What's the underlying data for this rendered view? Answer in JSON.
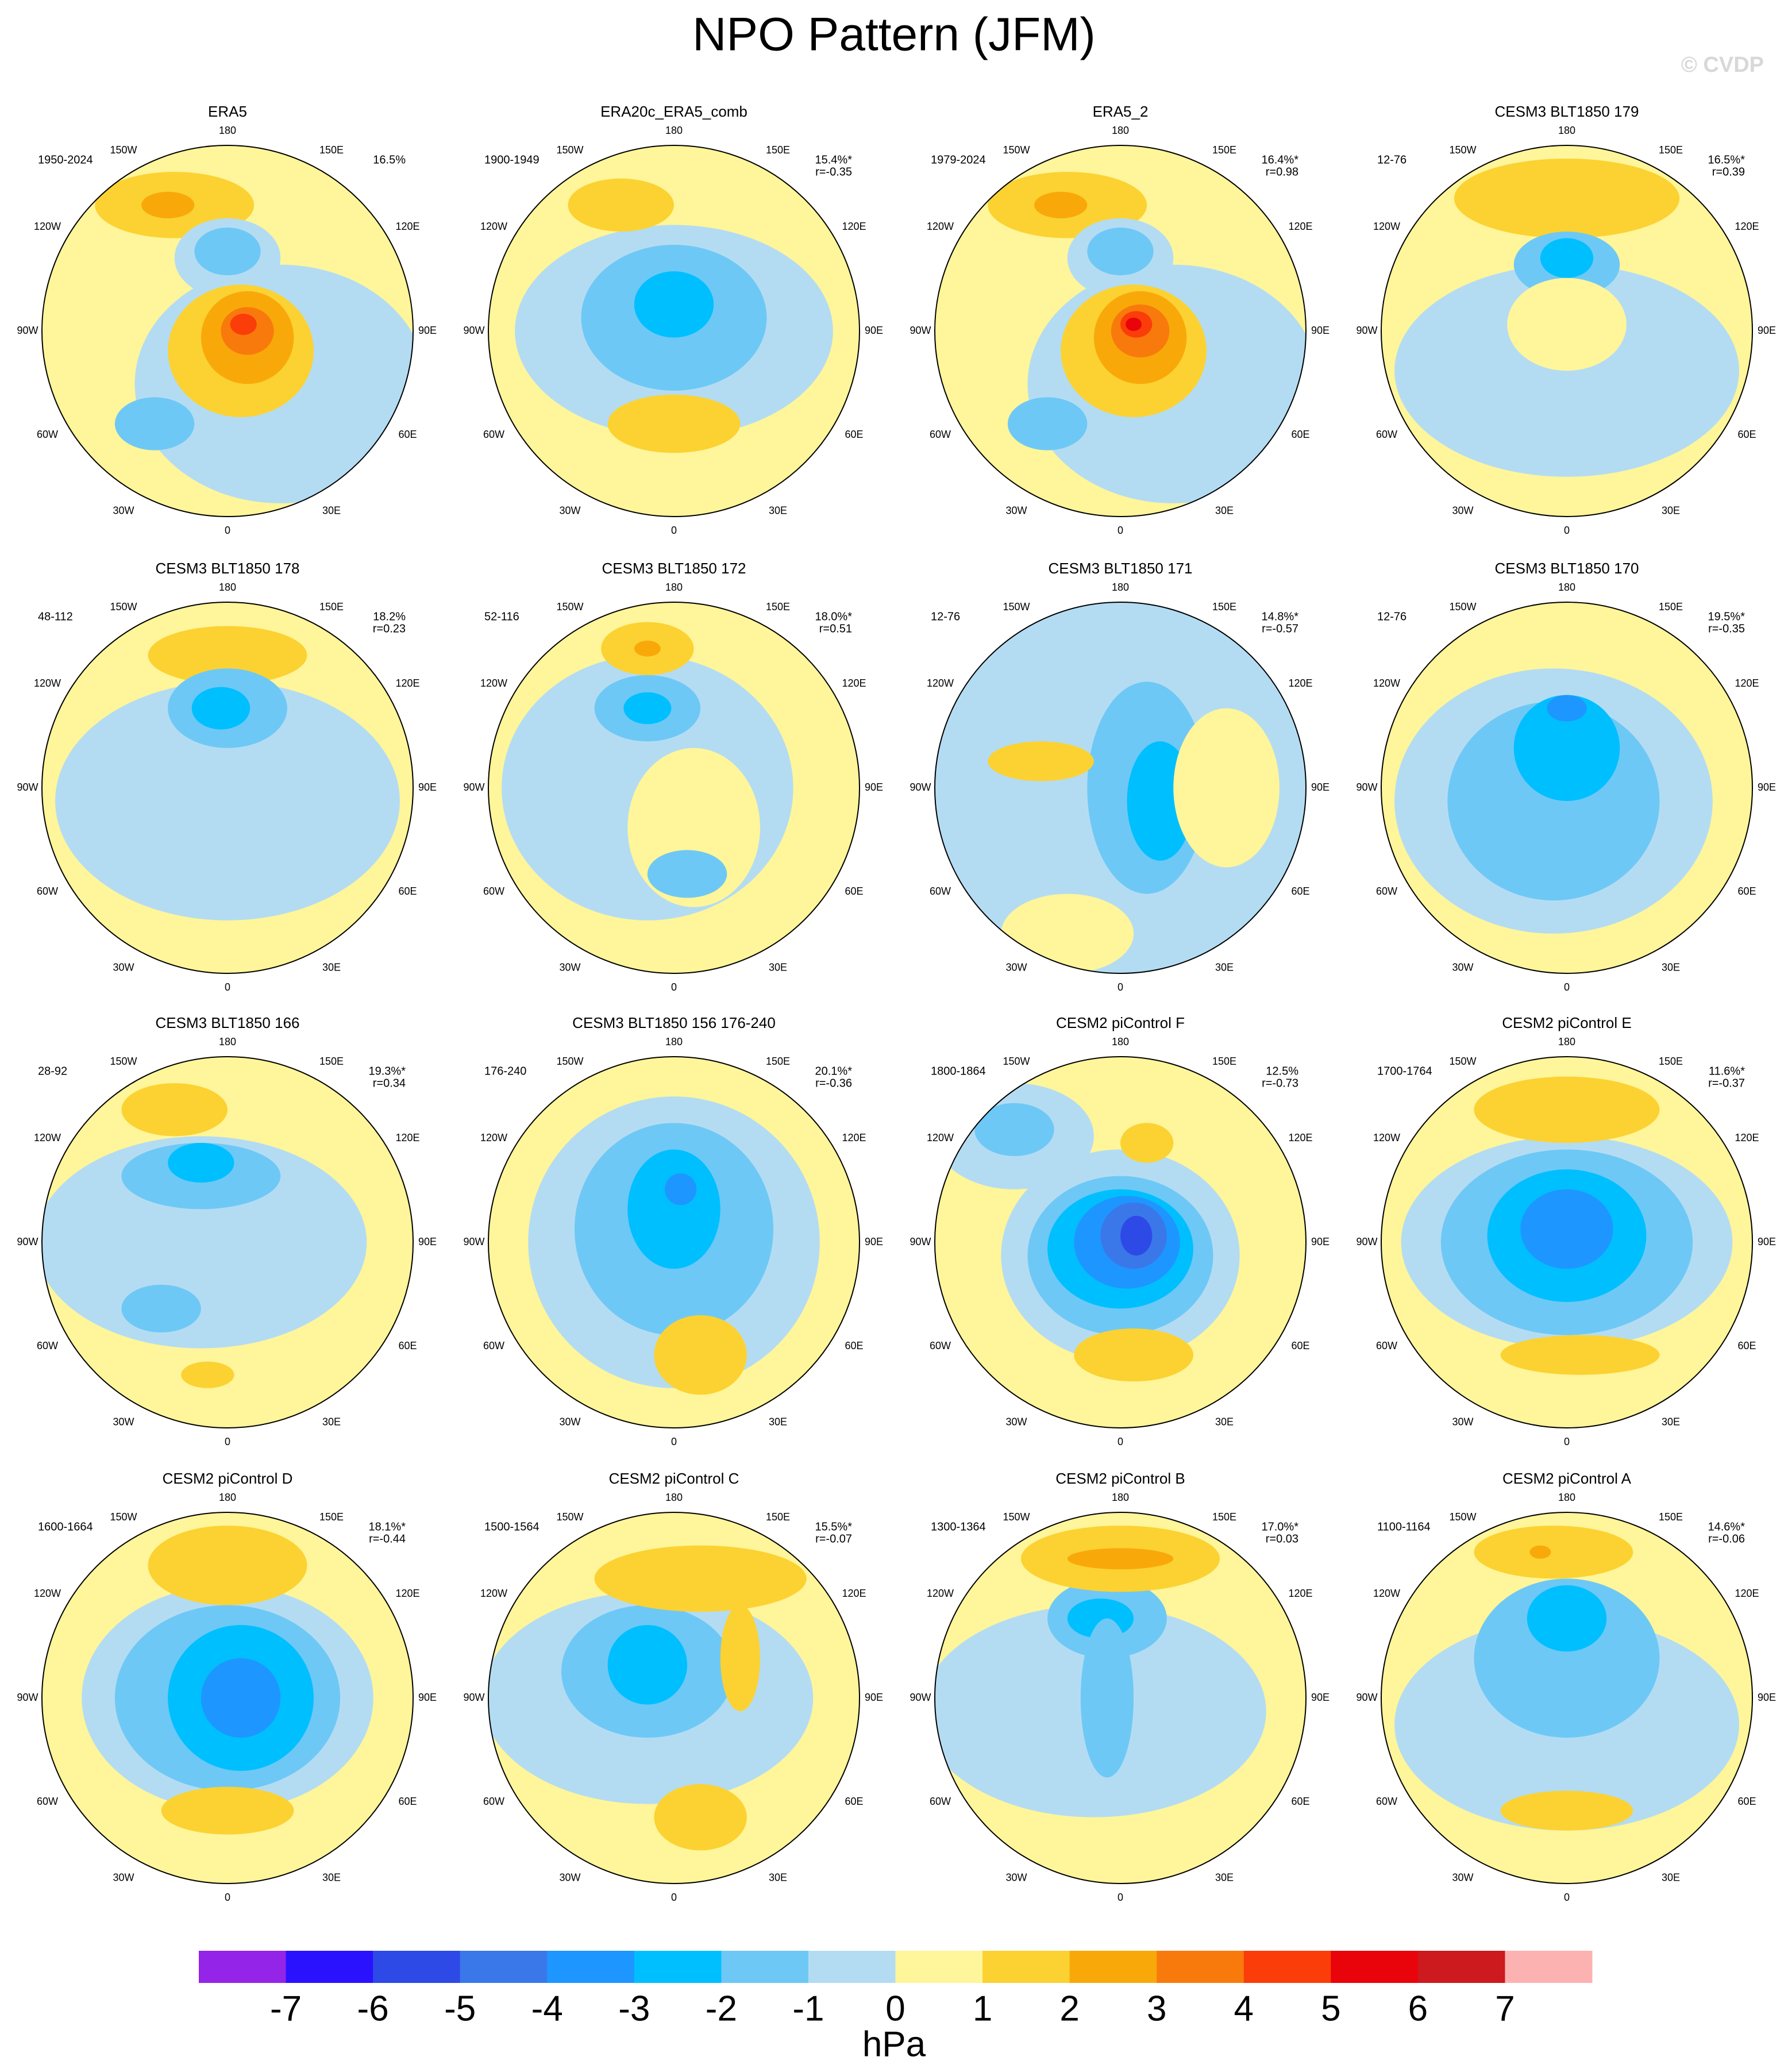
{
  "title": "NPO Pattern (JFM)",
  "watermark": "© CVDP",
  "lon_labels": [
    "180",
    "150E",
    "120E",
    "90E",
    "60E",
    "30E",
    "0",
    "30W",
    "60W",
    "90W",
    "120W",
    "150W"
  ],
  "panels": [
    {
      "title": "ERA5",
      "period": "1950-2024",
      "pct": "16.5%"
    },
    {
      "title": "ERA20c_ERA5_comb",
      "period": "1900-1949",
      "pct": "15.4%*",
      "r": "r=-0.35"
    },
    {
      "title": "ERA5_2",
      "period": "1979-2024",
      "pct": "16.4%*",
      "r": "r=0.98"
    },
    {
      "title": "CESM3 BLT1850 179",
      "period": "12-76",
      "pct": "16.5%*",
      "r": "r=0.39"
    },
    {
      "title": "CESM3 BLT1850 178",
      "period": "48-112",
      "pct": "18.2%",
      "r": "r=0.23"
    },
    {
      "title": "CESM3 BLT1850 172",
      "period": "52-116",
      "pct": "18.0%*",
      "r": "r=0.51"
    },
    {
      "title": "CESM3 BLT1850 171",
      "period": "12-76",
      "pct": "14.8%*",
      "r": "r=-0.57"
    },
    {
      "title": "CESM3 BLT1850 170",
      "period": "12-76",
      "pct": "19.5%*",
      "r": "r=-0.35"
    },
    {
      "title": "CESM3 BLT1850 166",
      "period": "28-92",
      "pct": "19.3%*",
      "r": "r=0.34"
    },
    {
      "title": "CESM3 BLT1850 156 176-240",
      "period": "176-240",
      "pct": "20.1%*",
      "r": "r=-0.36"
    },
    {
      "title": "CESM2 piControl F",
      "period": "1800-1864",
      "pct": "12.5%",
      "r": "r=-0.73"
    },
    {
      "title": "CESM2 piControl E",
      "period": "1700-1764",
      "pct": "11.6%*",
      "r": "r=-0.37"
    },
    {
      "title": "CESM2 piControl D",
      "period": "1600-1664",
      "pct": "18.1%*",
      "r": "r=-0.44"
    },
    {
      "title": "CESM2 piControl C",
      "period": "1500-1564",
      "pct": "15.5%*",
      "r": "r=-0.07"
    },
    {
      "title": "CESM2 piControl B",
      "period": "1300-1364",
      "pct": "17.0%*",
      "r": "r=0.03"
    },
    {
      "title": "CESM2 piControl A",
      "period": "1100-1164",
      "pct": "14.6%*",
      "r": "r=-0.06"
    }
  ],
  "colorbar": {
    "colors": [
      "#9424e8",
      "#2a12ff",
      "#2d4ae6",
      "#3a78ea",
      "#1e96ff",
      "#00bfff",
      "#6ec8f5",
      "#b3dcf3",
      "#fff59a",
      "#fbd232",
      "#f9a80a",
      "#f97a0c",
      "#fb3d09",
      "#e8040a",
      "#cc1a1e",
      "#fdb2b2"
    ],
    "ticks": [
      -7,
      -6,
      -5,
      -4,
      -3,
      -2,
      -1,
      0,
      1,
      2,
      3,
      4,
      5,
      6,
      7
    ],
    "units": "hPa"
  }
}
